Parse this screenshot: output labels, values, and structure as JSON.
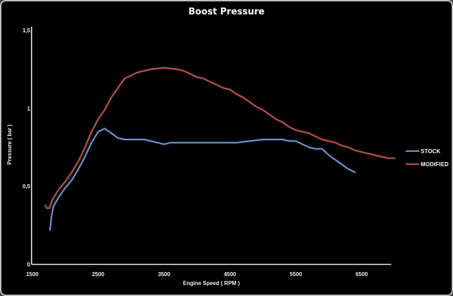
{
  "chart_data": {
    "type": "line",
    "title": "Boost Pressure",
    "xlabel": "Engine Speed ( RPM )",
    "ylabel": "Pressure ( bar )",
    "xlim": [
      1500,
      6950
    ],
    "ylim": [
      0,
      1.5
    ],
    "grid": false,
    "legend_position": "right",
    "background": "#000000",
    "axis_color": "#efefef",
    "x_ticks": [
      {
        "value": 1500,
        "label": "1500"
      },
      {
        "value": 2500,
        "label": "2500"
      },
      {
        "value": 3500,
        "label": "3500"
      },
      {
        "value": 4500,
        "label": "4500"
      },
      {
        "value": 5500,
        "label": "5500"
      },
      {
        "value": 6500,
        "label": "6500"
      }
    ],
    "y_ticks": [
      {
        "value": 0,
        "label": "0"
      },
      {
        "value": 0.5,
        "label": "0,5"
      },
      {
        "value": 1,
        "label": "1"
      },
      {
        "value": 1.5,
        "label": "1,5"
      }
    ],
    "series": [
      {
        "name": "STOCK",
        "color": "#7397ce",
        "points": [
          [
            1770,
            0.22
          ],
          [
            1790,
            0.3
          ],
          [
            1820,
            0.37
          ],
          [
            1900,
            0.43
          ],
          [
            2000,
            0.49
          ],
          [
            2100,
            0.54
          ],
          [
            2200,
            0.61
          ],
          [
            2300,
            0.69
          ],
          [
            2400,
            0.78
          ],
          [
            2500,
            0.85
          ],
          [
            2600,
            0.87
          ],
          [
            2700,
            0.84
          ],
          [
            2800,
            0.81
          ],
          [
            2900,
            0.8
          ],
          [
            3000,
            0.8
          ],
          [
            3100,
            0.8
          ],
          [
            3200,
            0.8
          ],
          [
            3300,
            0.79
          ],
          [
            3400,
            0.78
          ],
          [
            3500,
            0.77
          ],
          [
            3600,
            0.78
          ],
          [
            3700,
            0.78
          ],
          [
            3800,
            0.78
          ],
          [
            3900,
            0.78
          ],
          [
            4000,
            0.78
          ],
          [
            4200,
            0.78
          ],
          [
            4400,
            0.78
          ],
          [
            4600,
            0.78
          ],
          [
            4800,
            0.79
          ],
          [
            5000,
            0.8
          ],
          [
            5100,
            0.8
          ],
          [
            5200,
            0.8
          ],
          [
            5300,
            0.8
          ],
          [
            5400,
            0.79
          ],
          [
            5500,
            0.79
          ],
          [
            5600,
            0.77
          ],
          [
            5700,
            0.75
          ],
          [
            5800,
            0.74
          ],
          [
            5900,
            0.74
          ],
          [
            6000,
            0.7
          ],
          [
            6100,
            0.67
          ],
          [
            6200,
            0.64
          ],
          [
            6300,
            0.61
          ],
          [
            6400,
            0.59
          ]
        ]
      },
      {
        "name": "MODIFIED",
        "color": "#c4504b",
        "points": [
          [
            1700,
            0.38
          ],
          [
            1720,
            0.36
          ],
          [
            1760,
            0.36
          ],
          [
            1800,
            0.41
          ],
          [
            1900,
            0.48
          ],
          [
            2000,
            0.53
          ],
          [
            2100,
            0.59
          ],
          [
            2200,
            0.66
          ],
          [
            2300,
            0.75
          ],
          [
            2400,
            0.85
          ],
          [
            2500,
            0.93
          ],
          [
            2600,
            0.99
          ],
          [
            2700,
            1.07
          ],
          [
            2800,
            1.13
          ],
          [
            2900,
            1.19
          ],
          [
            3000,
            1.21
          ],
          [
            3100,
            1.23
          ],
          [
            3200,
            1.24
          ],
          [
            3300,
            1.25
          ],
          [
            3400,
            1.255
          ],
          [
            3500,
            1.26
          ],
          [
            3600,
            1.255
          ],
          [
            3700,
            1.25
          ],
          [
            3800,
            1.24
          ],
          [
            3900,
            1.22
          ],
          [
            4000,
            1.2
          ],
          [
            4100,
            1.19
          ],
          [
            4200,
            1.17
          ],
          [
            4300,
            1.15
          ],
          [
            4400,
            1.13
          ],
          [
            4500,
            1.12
          ],
          [
            4600,
            1.09
          ],
          [
            4700,
            1.07
          ],
          [
            4800,
            1.04
          ],
          [
            4900,
            1.01
          ],
          [
            5000,
            0.99
          ],
          [
            5100,
            0.96
          ],
          [
            5200,
            0.93
          ],
          [
            5300,
            0.91
          ],
          [
            5400,
            0.88
          ],
          [
            5500,
            0.86
          ],
          [
            5600,
            0.85
          ],
          [
            5700,
            0.84
          ],
          [
            5800,
            0.82
          ],
          [
            5900,
            0.8
          ],
          [
            6000,
            0.79
          ],
          [
            6100,
            0.78
          ],
          [
            6200,
            0.76
          ],
          [
            6300,
            0.75
          ],
          [
            6400,
            0.73
          ],
          [
            6500,
            0.72
          ],
          [
            6600,
            0.71
          ],
          [
            6700,
            0.7
          ],
          [
            6800,
            0.69
          ],
          [
            6900,
            0.68
          ],
          [
            7000,
            0.68
          ]
        ]
      }
    ]
  }
}
